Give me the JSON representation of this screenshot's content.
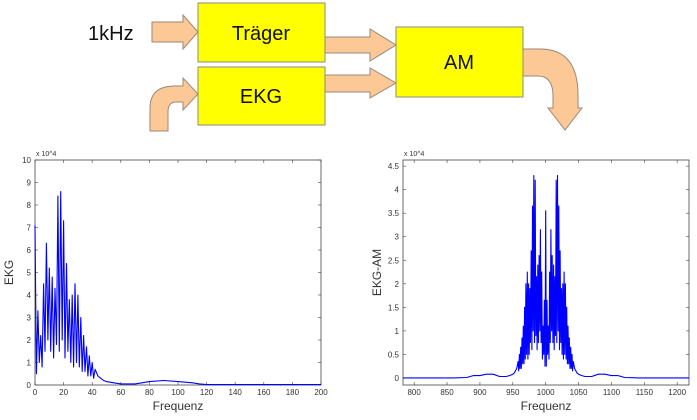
{
  "diagram": {
    "input_label": "1kHz",
    "blocks": [
      {
        "id": "traeger",
        "label": "Träger"
      },
      {
        "id": "ekg",
        "label": "EKG"
      },
      {
        "id": "am",
        "label": "AM"
      }
    ],
    "colors": {
      "block_fill": "#ffff00",
      "arrow_fill": "#fcc896",
      "line": "#0000ff"
    }
  },
  "chart_data": [
    {
      "type": "line",
      "xlabel": "Frequenz",
      "ylabel": "EKG",
      "y_multiplier": "x 10^4",
      "xlim": [
        0,
        200
      ],
      "ylim": [
        0,
        10
      ],
      "xticks": [
        0,
        20,
        40,
        60,
        80,
        100,
        120,
        140,
        160,
        180,
        200
      ],
      "yticks": [
        0,
        1,
        2,
        3,
        4,
        5,
        6,
        7,
        8,
        9,
        10
      ],
      "grid": false,
      "color": "#0000ff",
      "points": [
        [
          0,
          7.1
        ],
        [
          1,
          0.5
        ],
        [
          2,
          3.3
        ],
        [
          3,
          1
        ],
        [
          4,
          2.2
        ],
        [
          5,
          0.8
        ],
        [
          6,
          4.5
        ],
        [
          7,
          1.5
        ],
        [
          8,
          6.3
        ],
        [
          9,
          2
        ],
        [
          10,
          5.2
        ],
        [
          11,
          1.5
        ],
        [
          12,
          4.8
        ],
        [
          13,
          1.2
        ],
        [
          14,
          4.3
        ],
        [
          15,
          1.8
        ],
        [
          16,
          8.4
        ],
        [
          17,
          1.5
        ],
        [
          18,
          8.6
        ],
        [
          19,
          2
        ],
        [
          20,
          7.3
        ],
        [
          21,
          1.2
        ],
        [
          22,
          5.4
        ],
        [
          23,
          1.5
        ],
        [
          24,
          3.8
        ],
        [
          25,
          1
        ],
        [
          26,
          4
        ],
        [
          27,
          0.8
        ],
        [
          28,
          4.5
        ],
        [
          29,
          1
        ],
        [
          30,
          4
        ],
        [
          31,
          0.8
        ],
        [
          32,
          3
        ],
        [
          33,
          0.6
        ],
        [
          34,
          2.2
        ],
        [
          35,
          0.6
        ],
        [
          36,
          1.7
        ],
        [
          37,
          0.4
        ],
        [
          38,
          1.3
        ],
        [
          39,
          0.4
        ],
        [
          40,
          1
        ],
        [
          41,
          0.3
        ],
        [
          42,
          0.7
        ],
        [
          44,
          0.4
        ],
        [
          46,
          0.3
        ],
        [
          48,
          0.2
        ],
        [
          50,
          0.15
        ],
        [
          55,
          0.1
        ],
        [
          60,
          0.05
        ],
        [
          70,
          0.05
        ],
        [
          80,
          0.15
        ],
        [
          90,
          0.2
        ],
        [
          100,
          0.15
        ],
        [
          110,
          0.1
        ],
        [
          115,
          0.05
        ],
        [
          120,
          0.02
        ],
        [
          200,
          0.02
        ]
      ]
    },
    {
      "type": "line",
      "xlabel": "Frequenz",
      "ylabel": "EKG-AM",
      "y_multiplier": "x 10^4",
      "xlim": [
        783,
        1218
      ],
      "ylim": [
        -0.15,
        4.63
      ],
      "xticks": [
        800,
        850,
        900,
        950,
        1000,
        1050,
        1100,
        1150,
        1200
      ],
      "yticks": [
        0,
        0.5,
        1,
        1.5,
        2,
        2.5,
        3,
        3.5,
        4,
        4.5
      ],
      "grid": false,
      "color": "#0000ff",
      "points": [
        [
          783,
          0
        ],
        [
          860,
          0
        ],
        [
          880,
          0.01
        ],
        [
          885,
          0.03
        ],
        [
          890,
          0.05
        ],
        [
          900,
          0.05
        ],
        [
          910,
          0.08
        ],
        [
          920,
          0.08
        ],
        [
          930,
          0.03
        ],
        [
          940,
          0.03
        ],
        [
          945,
          0.05
        ],
        [
          950,
          0.08
        ],
        [
          952,
          0.1
        ],
        [
          954,
          0.15
        ],
        [
          956,
          0.2
        ],
        [
          958,
          0.35
        ],
        [
          959,
          0.15
        ],
        [
          960,
          0.5
        ],
        [
          961,
          0.2
        ],
        [
          962,
          0.65
        ],
        [
          963,
          0.2
        ],
        [
          964,
          0.85
        ],
        [
          965,
          0.3
        ],
        [
          966,
          1.1
        ],
        [
          967,
          0.3
        ],
        [
          968,
          1.5
        ],
        [
          969,
          0.4
        ],
        [
          970,
          2
        ],
        [
          971,
          0.5
        ],
        [
          972,
          2.25
        ],
        [
          973,
          0.4
        ],
        [
          974,
          2
        ],
        [
          975,
          0.5
        ],
        [
          976,
          1.9
        ],
        [
          977,
          0.75
        ],
        [
          978,
          2.7
        ],
        [
          979,
          0.6
        ],
        [
          980,
          3.65
        ],
        [
          981,
          1
        ],
        [
          982,
          4.3
        ],
        [
          983,
          0.75
        ],
        [
          984,
          4.2
        ],
        [
          985,
          0.9
        ],
        [
          986,
          2.15
        ],
        [
          987,
          0.6
        ],
        [
          988,
          2.4
        ],
        [
          989,
          0.75
        ],
        [
          990,
          2.6
        ],
        [
          991,
          1
        ],
        [
          992,
          3.15
        ],
        [
          993,
          0.75
        ],
        [
          994,
          2.25
        ],
        [
          995,
          0.4
        ],
        [
          996,
          1.1
        ],
        [
          997,
          0.5
        ],
        [
          998,
          1.65
        ],
        [
          999,
          0.25
        ],
        [
          1000,
          3.55
        ],
        [
          1001,
          0.25
        ],
        [
          1002,
          1.65
        ],
        [
          1003,
          0.5
        ],
        [
          1004,
          1.1
        ],
        [
          1005,
          0.4
        ],
        [
          1006,
          2.25
        ],
        [
          1007,
          0.75
        ],
        [
          1008,
          3.15
        ],
        [
          1009,
          1
        ],
        [
          1010,
          2.6
        ],
        [
          1011,
          0.75
        ],
        [
          1012,
          2.4
        ],
        [
          1013,
          0.6
        ],
        [
          1014,
          2.15
        ],
        [
          1015,
          0.9
        ],
        [
          1016,
          4.2
        ],
        [
          1017,
          0.75
        ],
        [
          1018,
          4.3
        ],
        [
          1019,
          1
        ],
        [
          1020,
          3.65
        ],
        [
          1021,
          0.6
        ],
        [
          1022,
          2.7
        ],
        [
          1023,
          0.75
        ],
        [
          1024,
          1.9
        ],
        [
          1025,
          0.5
        ],
        [
          1026,
          2
        ],
        [
          1027,
          0.4
        ],
        [
          1028,
          2.25
        ],
        [
          1029,
          0.5
        ],
        [
          1030,
          2
        ],
        [
          1031,
          0.4
        ],
        [
          1032,
          1.5
        ],
        [
          1033,
          0.3
        ],
        [
          1034,
          1.1
        ],
        [
          1035,
          0.3
        ],
        [
          1036,
          0.85
        ],
        [
          1037,
          0.2
        ],
        [
          1038,
          0.65
        ],
        [
          1039,
          0.2
        ],
        [
          1040,
          0.5
        ],
        [
          1041,
          0.15
        ],
        [
          1042,
          0.35
        ],
        [
          1044,
          0.2
        ],
        [
          1046,
          0.15
        ],
        [
          1048,
          0.1
        ],
        [
          1050,
          0.08
        ],
        [
          1055,
          0.05
        ],
        [
          1060,
          0.03
        ],
        [
          1070,
          0.03
        ],
        [
          1080,
          0.08
        ],
        [
          1090,
          0.08
        ],
        [
          1100,
          0.05
        ],
        [
          1110,
          0.05
        ],
        [
          1115,
          0.03
        ],
        [
          1120,
          0.01
        ],
        [
          1140,
          0
        ],
        [
          1218,
          0
        ]
      ]
    }
  ]
}
